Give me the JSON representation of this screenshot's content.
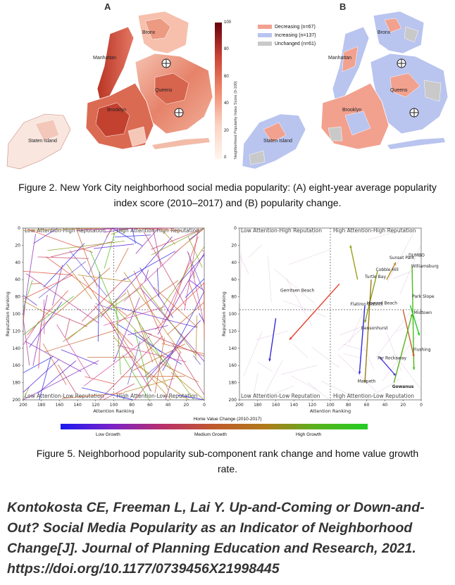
{
  "figure2": {
    "panel_a_letter": "A",
    "panel_b_letter": "B",
    "boroughs": [
      "Bronx",
      "Manhattan",
      "Queens",
      "Brooklyn",
      "Staten Island"
    ],
    "colorbar": {
      "label": "Neighborhood Popularity Index Score (0-100)",
      "ticks": [
        "100",
        "80",
        "60",
        "40",
        "20",
        "0"
      ]
    },
    "change_legend": [
      {
        "label": "Decreasing (n=67)",
        "color": "#f2a18f"
      },
      {
        "label": "Increasing (n=137)",
        "color": "#b9c4ef"
      },
      {
        "label": "Unchanged (n=61)",
        "color": "#c9c9c9"
      }
    ],
    "caption": "Figure 2. New York City neighborhood social media popularity: (A) eight-year average popularity index score (2010–2017) and (B) popularity change."
  },
  "figure5": {
    "quadrants": {
      "top_left": "Low Attention-High Reputation",
      "top_right": "High Attention-High Reputation",
      "bottom_left": "Low Attention-Low Reputation",
      "bottom_right": "High Attention-Low Reputation"
    },
    "xlabel": "Attention Ranking",
    "ylabel": "Reputation Ranking",
    "x_ticks": [
      "200",
      "180",
      "160",
      "140",
      "120",
      "100",
      "80",
      "60",
      "40",
      "20",
      "0"
    ],
    "y_ticks": [
      "0",
      "20",
      "40",
      "60",
      "80",
      "100",
      "120",
      "140",
      "160",
      "180",
      "200"
    ],
    "colorbar": {
      "title": "Home Value Change (2010-2017)",
      "labels": [
        "Low Growth",
        "Medium Growth",
        "High Growth"
      ]
    },
    "neighborhoods": [
      {
        "name": "Gerritsen Beach",
        "x": 155,
        "y": 74,
        "bold": false
      },
      {
        "name": "Flatiron District",
        "x": 78,
        "y": 90,
        "bold": false
      },
      {
        "name": "Turtle Bay",
        "x": 62,
        "y": 58,
        "bold": false
      },
      {
        "name": "Cobble Hill",
        "x": 50,
        "y": 50,
        "bold": false
      },
      {
        "name": "Sunset Park",
        "x": 35,
        "y": 36,
        "bold": false
      },
      {
        "name": "DUMBO",
        "x": 14,
        "y": 33,
        "bold": false
      },
      {
        "name": "Williamsburg",
        "x": 11,
        "y": 46,
        "bold": false
      },
      {
        "name": "Park Slope",
        "x": 10,
        "y": 81,
        "bold": false
      },
      {
        "name": "Howard Beach",
        "x": 60,
        "y": 89,
        "bold": false
      },
      {
        "name": "Midtown",
        "x": 8,
        "y": 100,
        "bold": false
      },
      {
        "name": "Bensonhurst",
        "x": 66,
        "y": 118,
        "bold": false
      },
      {
        "name": "Flushing",
        "x": 9,
        "y": 143,
        "bold": false
      },
      {
        "name": "Far Rockaway",
        "x": 48,
        "y": 153,
        "bold": false
      },
      {
        "name": "Maspeth",
        "x": 70,
        "y": 180,
        "bold": false
      },
      {
        "name": "Gowanus",
        "x": 32,
        "y": 186,
        "bold": true
      }
    ],
    "caption": "Figure 5. Neighborhood popularity sub-component rank change and home value growth rate."
  },
  "citation": "Kontokosta CE, Freeman L, Lai Y. Up-and-Coming or Down-and-Out? Social Media Popularity as an Indicator of Neighborhood Change[J]. Journal of Planning Education and Research, 2021.  https://doi.org/10.1177/0739456X21998445"
}
